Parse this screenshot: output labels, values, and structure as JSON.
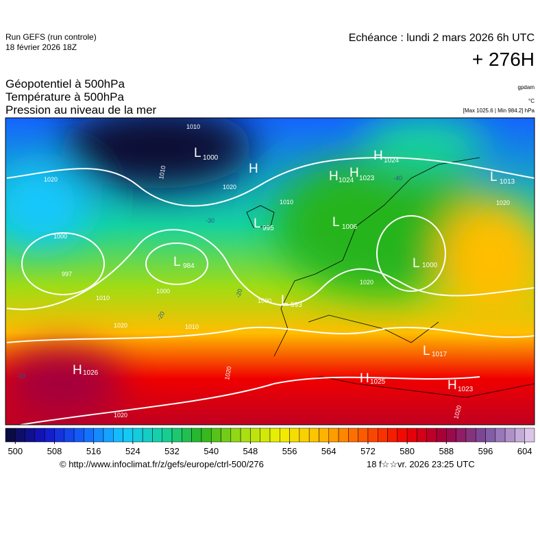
{
  "header": {
    "run": "Run GEFS (run controle)",
    "run_date": "18 février 2026 18Z",
    "forecast": "Echéance : lundi 2 mars 2026 6h UTC",
    "lead": "+ 276H"
  },
  "titles": [
    "Géopotentiel à 500hPa",
    "Température à 500hPa",
    "Pression au niveau de la mer"
  ],
  "units": [
    "gpdam",
    "°C",
    "[Max 1025.6 | Min 984.2] hPa"
  ],
  "centers": [
    {
      "letter": "L",
      "value": "1000"
    },
    {
      "letter": "H",
      "value": null
    },
    {
      "letter": "H",
      "value": "1024"
    },
    {
      "letter": "H",
      "value": "1024"
    },
    {
      "letter": "H",
      "value": "1023"
    },
    {
      "letter": "L",
      "value": "1013"
    },
    {
      "letter": "L",
      "value": "995"
    },
    {
      "letter": "L",
      "value": "1006"
    },
    {
      "letter": "L",
      "value": "984"
    },
    {
      "letter": "L",
      "value": "1000"
    },
    {
      "letter": "L",
      "value": "993"
    },
    {
      "letter": "L",
      "value": "1017"
    },
    {
      "letter": "H",
      "value": "1026"
    },
    {
      "letter": "H",
      "value": "1025"
    },
    {
      "letter": "H",
      "value": "1023"
    }
  ],
  "isobar_labels": [
    "1010",
    "1020",
    "1010",
    "1020",
    "1010",
    "1000",
    "997",
    "1000",
    "1000",
    "1010",
    "1020",
    "1010",
    "1020",
    "1020",
    "1020",
    "1020",
    "1020"
  ],
  "temperature_labels": [
    "-40",
    "-30",
    "-20",
    "-20",
    "-10"
  ],
  "colorbar": {
    "lim": [
      498,
      606
    ],
    "step": 2,
    "ticks": [
      500,
      508,
      516,
      524,
      532,
      540,
      548,
      556,
      564,
      572,
      580,
      588,
      596,
      604
    ],
    "stops": [
      [
        498,
        "#0a0a30"
      ],
      [
        506,
        "#1414c8"
      ],
      [
        514,
        "#1464ff"
      ],
      [
        522,
        "#14c8ff"
      ],
      [
        530,
        "#14d2a0"
      ],
      [
        538,
        "#28b41e"
      ],
      [
        546,
        "#a0dc14"
      ],
      [
        554,
        "#f0f000"
      ],
      [
        562,
        "#ffbe00"
      ],
      [
        570,
        "#ff6400"
      ],
      [
        580,
        "#f00000"
      ],
      [
        588,
        "#a00040"
      ],
      [
        596,
        "#7850a0"
      ],
      [
        606,
        "#e6d2f0"
      ]
    ]
  },
  "footer": {
    "url": "© http://www.infoclimat.fr/z/gefs/europe/ctrl-500/276",
    "generated": "18 f☆☆vr. 2026 23:25 UTC"
  }
}
